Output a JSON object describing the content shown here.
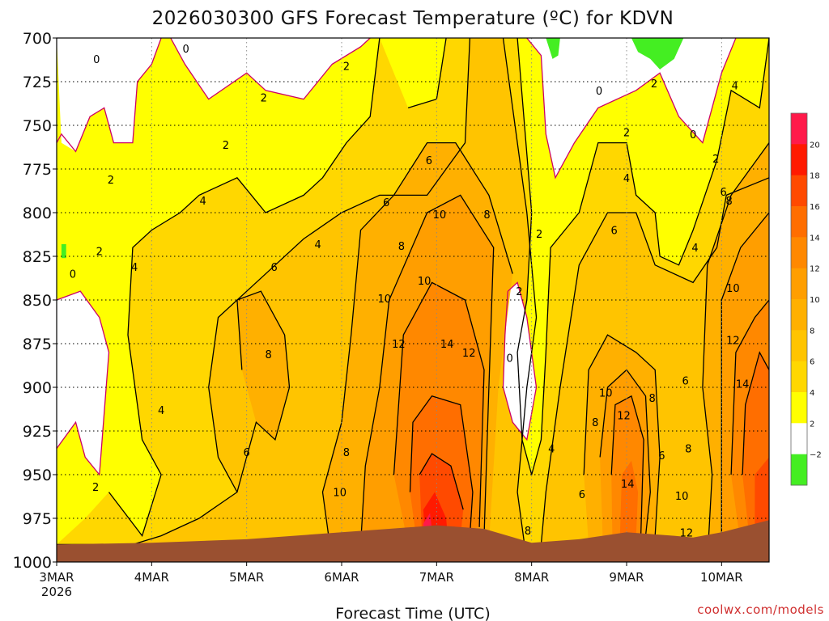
{
  "chart_data": {
    "type": "heatmap",
    "title": "2026030300 GFS Forecast Temperature (ºC) for KDVN",
    "xlabel": "Forecast Time (UTC)",
    "ylabel": "",
    "credit": "coolwx.com/models",
    "y_axis": {
      "inverted": true,
      "range": [
        700,
        1000
      ],
      "ticks": [
        "700",
        "725",
        "750",
        "775",
        "800",
        "825",
        "850",
        "875",
        "900",
        "925",
        "950",
        "975",
        "1000"
      ]
    },
    "x_axis": {
      "range_days": [
        0,
        7.5
      ],
      "ticks": [
        {
          "label": "3MAR",
          "sublabel": "2026",
          "day": 0
        },
        {
          "label": "4MAR",
          "sublabel": "",
          "day": 1
        },
        {
          "label": "5MAR",
          "sublabel": "",
          "day": 2
        },
        {
          "label": "6MAR",
          "sublabel": "",
          "day": 3
        },
        {
          "label": "7MAR",
          "sublabel": "",
          "day": 4
        },
        {
          "label": "8MAR",
          "sublabel": "",
          "day": 5
        },
        {
          "label": "9MAR",
          "sublabel": "",
          "day": 6
        },
        {
          "label": "10MAR",
          "sublabel": "",
          "day": 7
        }
      ]
    },
    "colorbar": {
      "labels": [
        "20",
        "18",
        "16",
        "14",
        "12",
        "10",
        "8",
        "6",
        "4",
        "2",
        "−2"
      ],
      "bands": [
        {
          "min": 20,
          "max": 22,
          "color": "#ff1a4a"
        },
        {
          "min": 18,
          "max": 20,
          "color": "#ff1a00"
        },
        {
          "min": 16,
          "max": 18,
          "color": "#ff4a00"
        },
        {
          "min": 14,
          "max": 16,
          "color": "#ff6e00"
        },
        {
          "min": 12,
          "max": 14,
          "color": "#ff8800"
        },
        {
          "min": 10,
          "max": 12,
          "color": "#ff9e00"
        },
        {
          "min": 8,
          "max": 10,
          "color": "#ffb000"
        },
        {
          "min": 6,
          "max": 8,
          "color": "#ffc400"
        },
        {
          "min": 4,
          "max": 6,
          "color": "#ffd700"
        },
        {
          "min": 2,
          "max": 4,
          "color": "#ffff00"
        },
        {
          "min": -2,
          "max": 2,
          "color": "#ffffff"
        },
        {
          "min": -4,
          "max": -2,
          "color": "#44ee22"
        }
      ]
    },
    "zero_line_color": "#cc0066",
    "terrain_color": "#9a5030",
    "contour_labels": [
      {
        "text": "0",
        "day": 0.42,
        "p": 712
      },
      {
        "text": "0",
        "day": 1.36,
        "p": 706
      },
      {
        "text": "2",
        "day": 3.05,
        "p": 716
      },
      {
        "text": "2",
        "day": 2.18,
        "p": 734
      },
      {
        "text": "2",
        "day": 1.78,
        "p": 761
      },
      {
        "text": "2",
        "day": 0.57,
        "p": 781
      },
      {
        "text": "2",
        "day": 0.45,
        "p": 822
      },
      {
        "text": "0",
        "day": 0.17,
        "p": 835
      },
      {
        "text": "4",
        "day": 0.82,
        "p": 831
      },
      {
        "text": "4",
        "day": 1.54,
        "p": 793
      },
      {
        "text": "4",
        "day": 2.75,
        "p": 818
      },
      {
        "text": "6",
        "day": 2.29,
        "p": 831
      },
      {
        "text": "6",
        "day": 3.47,
        "p": 794
      },
      {
        "text": "6",
        "day": 3.92,
        "p": 770
      },
      {
        "text": "8",
        "day": 3.63,
        "p": 819
      },
      {
        "text": "10",
        "day": 4.03,
        "p": 801
      },
      {
        "text": "8",
        "day": 4.53,
        "p": 801
      },
      {
        "text": "10",
        "day": 3.87,
        "p": 839
      },
      {
        "text": "10",
        "day": 3.45,
        "p": 849
      },
      {
        "text": "12",
        "day": 3.6,
        "p": 875
      },
      {
        "text": "14",
        "day": 4.11,
        "p": 875
      },
      {
        "text": "12",
        "day": 4.34,
        "p": 880
      },
      {
        "text": "8",
        "day": 2.23,
        "p": 881
      },
      {
        "text": "4",
        "day": 1.1,
        "p": 913
      },
      {
        "text": "6",
        "day": 2.0,
        "p": 937
      },
      {
        "text": "8",
        "day": 3.05,
        "p": 937
      },
      {
        "text": "10",
        "day": 2.98,
        "p": 960
      },
      {
        "text": "2",
        "day": 0.41,
        "p": 957
      },
      {
        "text": "2",
        "day": 4.87,
        "p": 845
      },
      {
        "text": "0",
        "day": 4.77,
        "p": 883
      },
      {
        "text": "2",
        "day": 5.08,
        "p": 812
      },
      {
        "text": "4",
        "day": 5.21,
        "p": 935
      },
      {
        "text": "0",
        "day": 5.71,
        "p": 730
      },
      {
        "text": "2",
        "day": 6.29,
        "p": 726
      },
      {
        "text": "2",
        "day": 6.0,
        "p": 754
      },
      {
        "text": "0",
        "day": 6.7,
        "p": 755
      },
      {
        "text": "4",
        "day": 6.0,
        "p": 780
      },
      {
        "text": "6",
        "day": 5.87,
        "p": 810
      },
      {
        "text": "4",
        "day": 6.72,
        "p": 820
      },
      {
        "text": "2",
        "day": 6.94,
        "p": 769
      },
      {
        "text": "4",
        "day": 7.14,
        "p": 727
      },
      {
        "text": "6",
        "day": 7.02,
        "p": 788
      },
      {
        "text": "8",
        "day": 7.08,
        "p": 793
      },
      {
        "text": "10",
        "day": 7.12,
        "p": 843
      },
      {
        "text": "12",
        "day": 7.12,
        "p": 873
      },
      {
        "text": "14",
        "day": 7.22,
        "p": 898
      },
      {
        "text": "6",
        "day": 6.62,
        "p": 896
      },
      {
        "text": "10",
        "day": 5.78,
        "p": 903
      },
      {
        "text": "8",
        "day": 6.27,
        "p": 906
      },
      {
        "text": "12",
        "day": 5.97,
        "p": 916
      },
      {
        "text": "8",
        "day": 5.67,
        "p": 920
      },
      {
        "text": "6",
        "day": 6.37,
        "p": 939
      },
      {
        "text": "8",
        "day": 6.65,
        "p": 935
      },
      {
        "text": "14",
        "day": 6.01,
        "p": 955
      },
      {
        "text": "6",
        "day": 5.53,
        "p": 961
      },
      {
        "text": "10",
        "day": 6.58,
        "p": 962
      },
      {
        "text": "12",
        "day": 6.63,
        "p": 983
      },
      {
        "text": "8",
        "day": 4.96,
        "p": 982
      }
    ]
  }
}
